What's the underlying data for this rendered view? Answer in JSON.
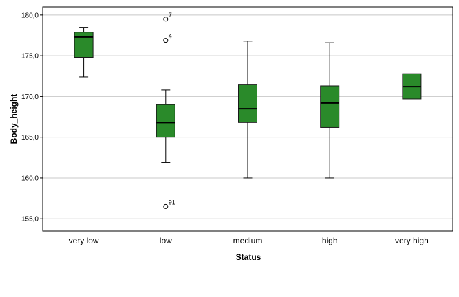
{
  "chart_data": {
    "type": "boxplot",
    "xlabel": "Status",
    "ylabel": "Body_height",
    "ylim": [
      153.5,
      181.0
    ],
    "yticks": [
      {
        "value": 155,
        "label": "155,0"
      },
      {
        "value": 160,
        "label": "160,0"
      },
      {
        "value": 165,
        "label": "165,0"
      },
      {
        "value": 170,
        "label": "170,0"
      },
      {
        "value": 175,
        "label": "175,0"
      },
      {
        "value": 180,
        "label": "180,0"
      }
    ],
    "grid": true,
    "box_color": "#2a8a2a",
    "categories": [
      "very low",
      "low",
      "medium",
      "high",
      "very high"
    ],
    "boxes": [
      {
        "category": "very low",
        "whisker_low": 172.4,
        "q1": 174.8,
        "median": 177.3,
        "q3": 177.9,
        "whisker_high": 178.5,
        "outliers": []
      },
      {
        "category": "low",
        "whisker_low": 161.9,
        "q1": 165.0,
        "median": 166.8,
        "q3": 169.0,
        "whisker_high": 170.8,
        "outliers": [
          {
            "value": 179.5,
            "label": "7"
          },
          {
            "value": 176.9,
            "label": "4"
          },
          {
            "value": 156.5,
            "label": "91"
          }
        ]
      },
      {
        "category": "medium",
        "whisker_low": 160.0,
        "q1": 166.8,
        "median": 168.5,
        "q3": 171.5,
        "whisker_high": 176.8,
        "outliers": []
      },
      {
        "category": "high",
        "whisker_low": 160.0,
        "q1": 166.2,
        "median": 169.2,
        "q3": 171.3,
        "whisker_high": 176.6,
        "outliers": []
      },
      {
        "category": "very high",
        "whisker_low": 169.7,
        "q1": 169.7,
        "median": 171.2,
        "q3": 172.8,
        "whisker_high": 172.8,
        "outliers": []
      }
    ]
  }
}
